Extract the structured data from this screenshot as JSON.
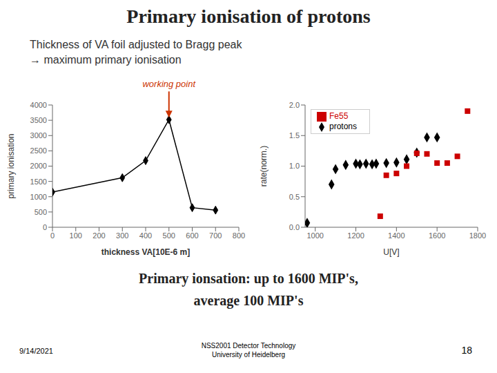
{
  "title": "Primary ionisation of protons",
  "subtitle": [
    "Thickness of VA foil adjusted to Bragg peak",
    "→ maximum primary ionisation"
  ],
  "annotations": [
    "Primary ionsation: up to 1600 MIP's,",
    "average 100 MIP's"
  ],
  "footer": [
    "9/14/2021",
    "NSS2001 Detector Technology\nUniversity of Heidelberg",
    "18"
  ],
  "chart_data": [
    {
      "type": "line",
      "x": [
        0,
        300,
        400,
        500,
        600,
        700
      ],
      "values": [
        1150,
        1620,
        2180,
        3520,
        640,
        560
      ],
      "color": "#000000",
      "marker": "diamond",
      "xlabel": "thickness VA[10E-6 m]",
      "ylabel": "primary ionisation",
      "xlim": [
        0,
        800
      ],
      "ylim": [
        0,
        4000
      ],
      "xticks": [
        0,
        100,
        200,
        300,
        400,
        500,
        600,
        700,
        800
      ],
      "yticks": [
        0,
        500,
        1000,
        1500,
        2000,
        2500,
        3000,
        3500,
        4000
      ],
      "grid": false,
      "annotations": [
        {
          "text": "working point",
          "x": 500,
          "y": 3540,
          "color": "#cc3300"
        }
      ]
    },
    {
      "type": "scatter",
      "series": [
        {
          "name": "protons",
          "color": "#000000",
          "marker": "diamond",
          "x": [
            960,
            1080,
            1100,
            1150,
            1200,
            1220,
            1250,
            1280,
            1300,
            1350,
            1400,
            1450,
            1500,
            1550,
            1600
          ],
          "values": [
            0.07,
            0.7,
            0.95,
            1.02,
            1.04,
            1.03,
            1.04,
            1.03,
            1.04,
            1.05,
            1.06,
            1.11,
            1.22,
            1.47,
            1.47
          ]
        },
        {
          "name": "Fe55",
          "color": "#cc0000",
          "marker": "square",
          "x": [
            1320,
            1350,
            1400,
            1450,
            1500,
            1550,
            1600,
            1650,
            1700,
            1750
          ],
          "values": [
            0.18,
            0.85,
            0.88,
            1.0,
            1.21,
            1.2,
            1.05,
            1.05,
            1.16,
            1.9
          ]
        }
      ],
      "xlabel": "U[V]",
      "ylabel": "rate(norm.)",
      "xlim": [
        950,
        1800
      ],
      "ylim": [
        0,
        2
      ],
      "xticks": [
        1000,
        1200,
        1400,
        1600,
        1800
      ],
      "yticks": [
        {
          "value": 0,
          "label": "0.0"
        },
        0.5,
        {
          "value": 1.0,
          "label": "1.0"
        },
        1.5,
        {
          "value": 2.0,
          "label": "2.0"
        }
      ],
      "legend": "upper left",
      "grid": false
    }
  ]
}
